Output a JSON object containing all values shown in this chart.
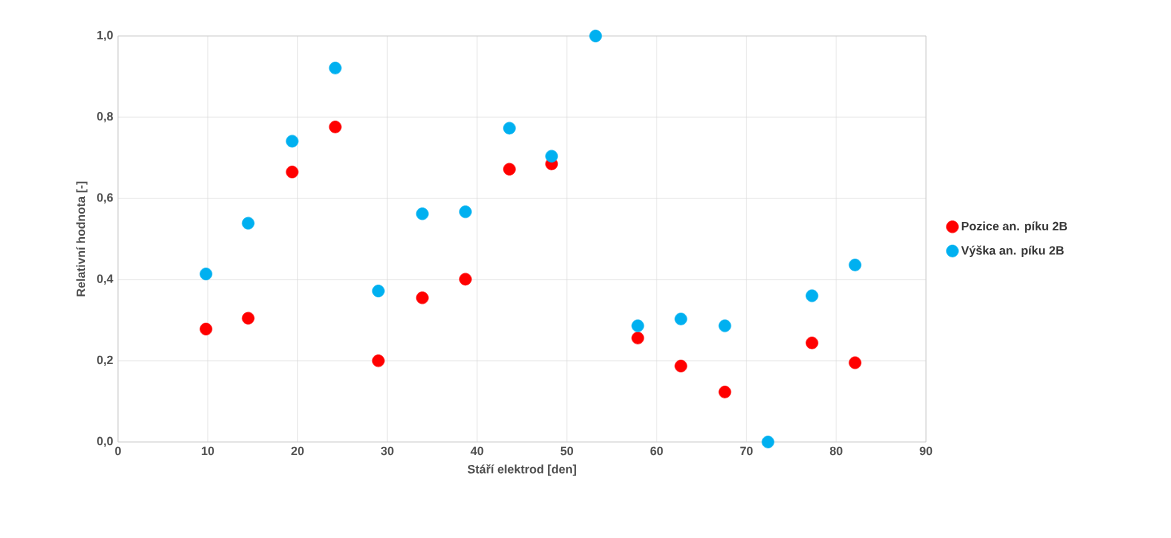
{
  "chart_data": {
    "type": "scatter",
    "xlabel": "Stáří elektrod [den]",
    "ylabel": "Relativní hodnota [-]",
    "x": [
      9.8,
      14.5,
      19.4,
      24.2,
      29.0,
      33.9,
      38.7,
      43.6,
      48.3,
      53.2,
      57.9,
      62.7,
      67.6,
      72.4,
      77.3,
      82.1
    ],
    "series": [
      {
        "name": "Pozice an. píku 2B",
        "color": "#ff0000",
        "values": [
          0.278,
          0.305,
          0.665,
          0.776,
          0.2,
          0.355,
          0.401,
          0.672,
          0.685,
          null,
          0.256,
          0.187,
          0.123,
          null,
          0.244,
          0.195
        ]
      },
      {
        "name": "Výška an. píku 2B",
        "color": "#00b0f0",
        "values": [
          0.414,
          0.539,
          0.741,
          0.921,
          0.372,
          0.562,
          0.567,
          0.773,
          0.704,
          1.0,
          0.286,
          0.303,
          0.286,
          0.0,
          0.36,
          0.436
        ]
      }
    ],
    "xlim": [
      0,
      90
    ],
    "xticks": [
      0,
      10,
      20,
      30,
      40,
      50,
      60,
      70,
      80,
      90
    ],
    "ylim": [
      0,
      1
    ],
    "yticks": [
      {
        "value": 0,
        "label": "0,0"
      },
      {
        "value": 0.2,
        "label": "0,2"
      },
      {
        "value": 0.4,
        "label": "0,4"
      },
      {
        "value": 0.6,
        "label": "0,6"
      },
      {
        "value": 0.8,
        "label": "0,8"
      },
      {
        "value": 1,
        "label": "1,0"
      }
    ],
    "grid": true,
    "legend": "right",
    "marker": "circle"
  }
}
